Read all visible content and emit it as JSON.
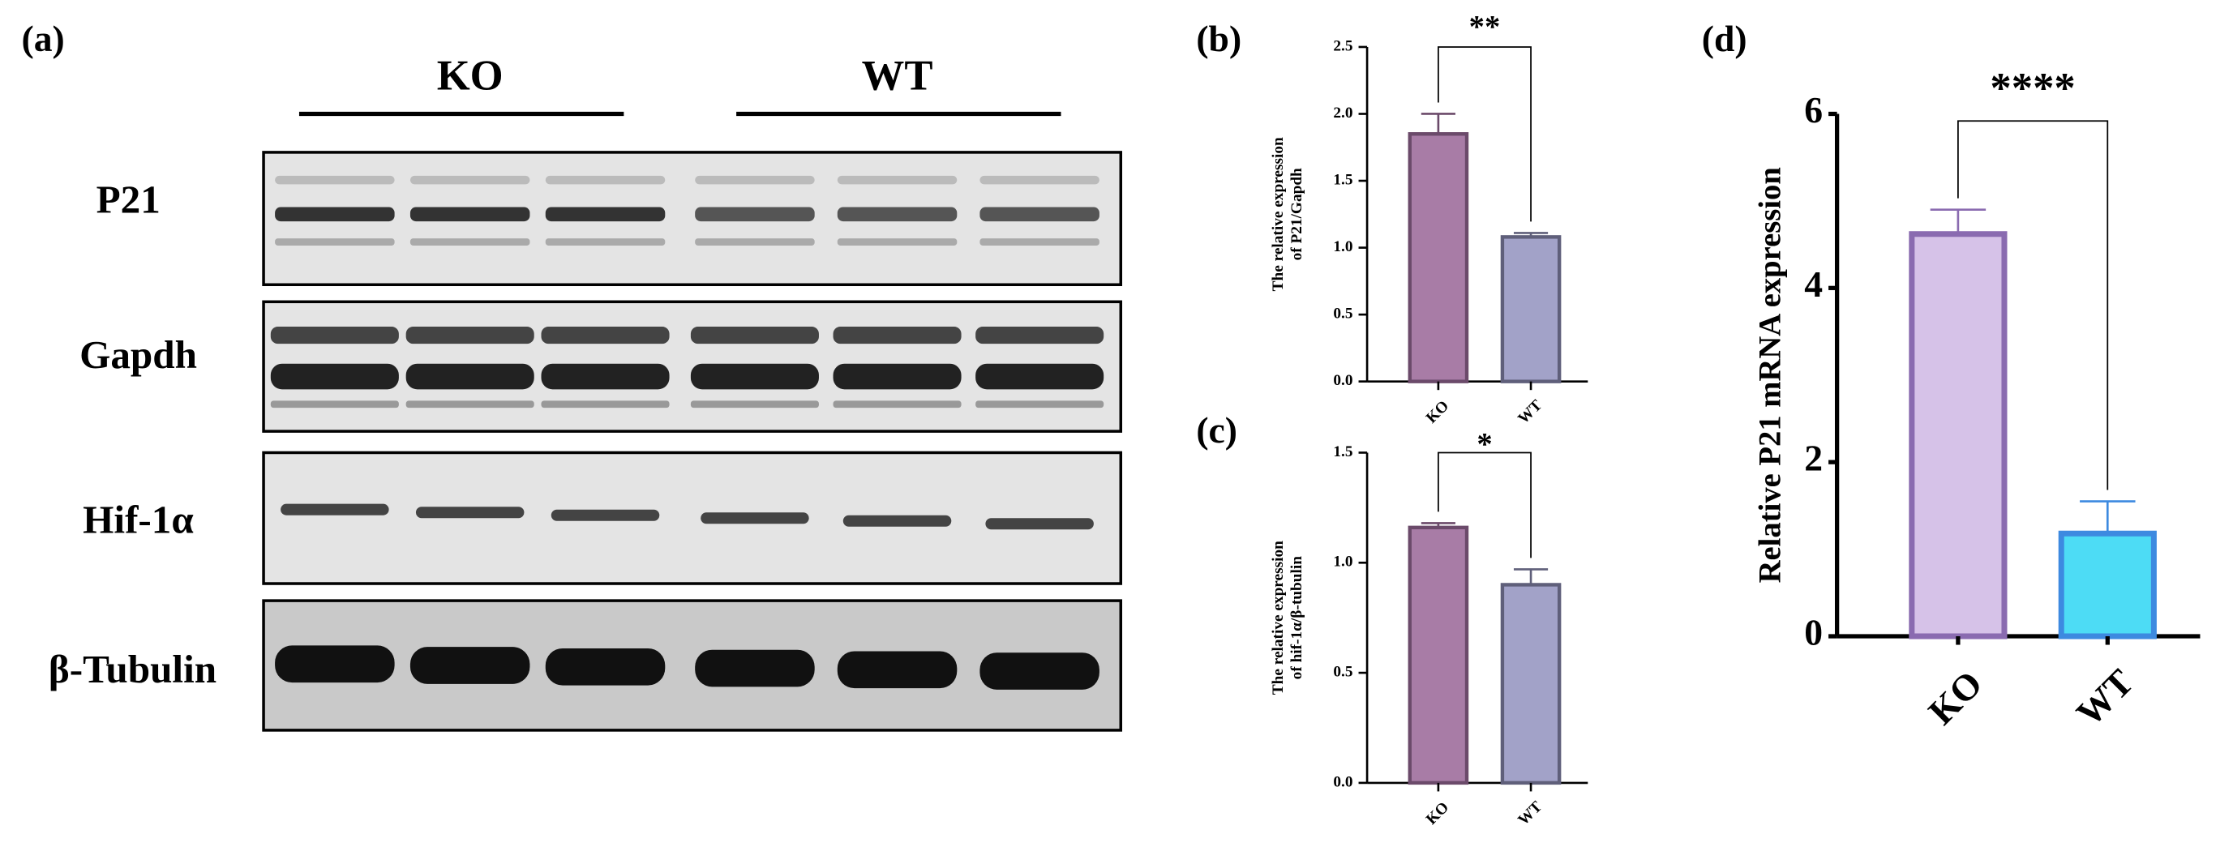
{
  "blot": {
    "label": "(a)",
    "groups": [
      "KO",
      "WT"
    ],
    "rows": [
      "P21",
      "Gapdh",
      "Hif-1α",
      "β-Tubulin"
    ]
  },
  "chart_data": [
    {
      "type": "bar",
      "label": "(b)",
      "y_label": [
        "The relative expression",
        "of P21/Gapdh"
      ],
      "categories": [
        "KO",
        "WT"
      ],
      "values": [
        1.85,
        1.08
      ],
      "errors": [
        0.15,
        0.03
      ],
      "colors": [
        "#a87ca6",
        "#a2a2c8"
      ],
      "edge_colors": [
        "#6b4a6a",
        "#5f5f7a"
      ],
      "significance": "**",
      "ylim": [
        0,
        2.5
      ],
      "yticks": [
        {
          "value": 0,
          "label": "0.0"
        },
        {
          "value": 0.5,
          "label": "0.5"
        },
        {
          "value": 1,
          "label": "1.0"
        },
        {
          "value": 1.5,
          "label": "1.5"
        },
        {
          "value": 2,
          "label": "2.0"
        },
        {
          "value": 2.5,
          "label": "2.5"
        }
      ]
    },
    {
      "type": "bar",
      "label": "(c)",
      "y_label": [
        "The relative expression",
        "of hif-1α/β-tubulin"
      ],
      "categories": [
        "KO",
        "WT"
      ],
      "values": [
        1.16,
        0.9
      ],
      "errors": [
        0.02,
        0.07
      ],
      "colors": [
        "#a87ca6",
        "#a2a2c8"
      ],
      "edge_colors": [
        "#6b4a6a",
        "#5f5f7a"
      ],
      "significance": "*",
      "ylim": [
        0,
        1.5
      ],
      "yticks": [
        {
          "value": 0,
          "label": "0.0"
        },
        {
          "value": 0.5,
          "label": "0.5"
        },
        {
          "value": 1,
          "label": "1.0"
        },
        {
          "value": 1.5,
          "label": "1.5"
        }
      ]
    },
    {
      "type": "bar",
      "label": "(d)",
      "y_label": [
        "Relative P21  mRNA expression"
      ],
      "categories": [
        "KO",
        "WT"
      ],
      "values": [
        4.62,
        1.18
      ],
      "errors": [
        0.28,
        0.37
      ],
      "colors": [
        "#d6c2e8",
        "#4ddcf5"
      ],
      "edge_colors": [
        "#8a6bb0",
        "#3d8ae0"
      ],
      "significance": "****",
      "ylim": [
        0,
        6
      ],
      "yticks": [
        0,
        2,
        4,
        6
      ]
    }
  ]
}
